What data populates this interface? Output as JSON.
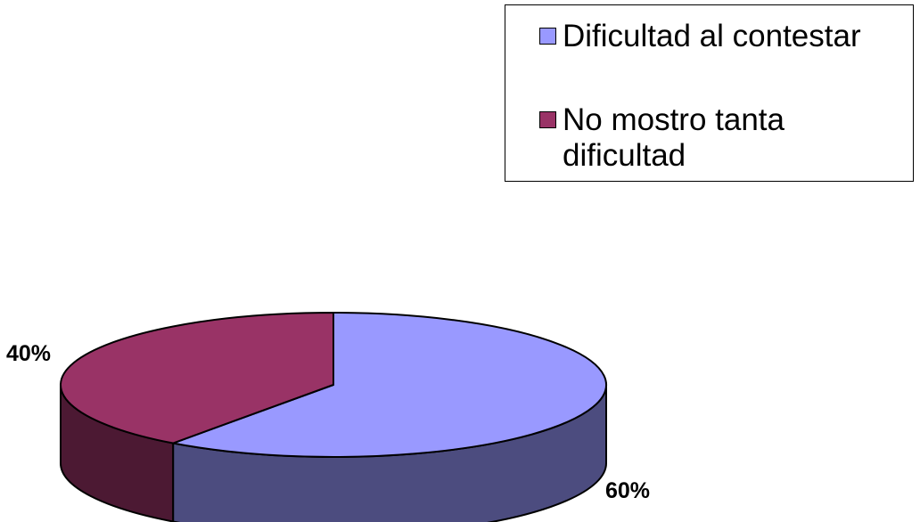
{
  "chart_data": {
    "type": "pie",
    "style": "3d",
    "title": "",
    "categories": [
      "Dificultad al contestar",
      "No mostro tanta dificultad"
    ],
    "values": [
      60,
      40
    ],
    "unit": "%",
    "data_labels": [
      "60%",
      "40%"
    ],
    "colors": {
      "top": [
        "#9999ff",
        "#993366"
      ],
      "side": [
        "#4c4c7f",
        "#4c1933"
      ],
      "outline": "#000000"
    },
    "legend": {
      "placement": "top-right",
      "entries": [
        "Dificultad al contestar",
        "No mostro tanta dificultad"
      ]
    }
  }
}
